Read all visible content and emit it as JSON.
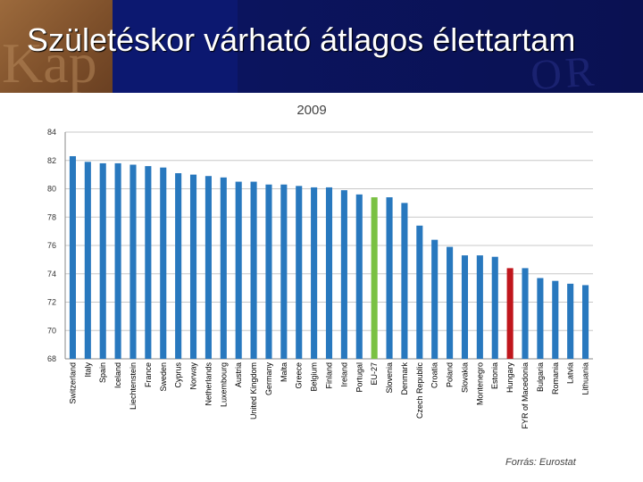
{
  "slide": {
    "title": "Születéskor várható átlagos élettartam",
    "source": "Forrás: Eurostat",
    "colors": {
      "header_bg": "#0a1258",
      "bar_default": "#2878be",
      "bar_eu": "#7ac143",
      "bar_hungary": "#c0161c"
    }
  },
  "chart_data": {
    "type": "bar",
    "title": "2009",
    "xlabel": "",
    "ylabel": "",
    "ylim": [
      68,
      84
    ],
    "yticks": [
      68,
      70,
      72,
      74,
      76,
      78,
      80,
      82,
      84
    ],
    "grid": true,
    "categories": [
      "Switzerland",
      "Italy",
      "Spain",
      "Iceland",
      "Liechtenstein",
      "France",
      "Sweden",
      "Cyprus",
      "Norway",
      "Netherlands",
      "Luxembourg",
      "Austria",
      "United Kingdom",
      "Germany",
      "Malta",
      "Greece",
      "Belgium",
      "Finland",
      "Ireland",
      "Portugal",
      "EU-27",
      "Slovenia",
      "Denmark",
      "Czech Republic",
      "Croatia",
      "Poland",
      "Slovakia",
      "Montenegro",
      "Estonia",
      "Hungary",
      "FYR of Macedonia",
      "Bulgaria",
      "Romania",
      "Latvia",
      "Lithuania"
    ],
    "values": [
      82.3,
      81.9,
      81.8,
      81.8,
      81.7,
      81.6,
      81.5,
      81.1,
      81.0,
      80.9,
      80.8,
      80.5,
      80.5,
      80.3,
      80.3,
      80.2,
      80.1,
      80.1,
      79.9,
      79.6,
      79.4,
      79.4,
      79.0,
      77.4,
      76.4,
      75.9,
      75.3,
      75.3,
      75.2,
      74.4,
      74.4,
      73.7,
      73.5,
      73.3,
      73.2
    ],
    "highlights": {
      "EU-27": "#7ac143",
      "Hungary": "#c0161c"
    }
  }
}
